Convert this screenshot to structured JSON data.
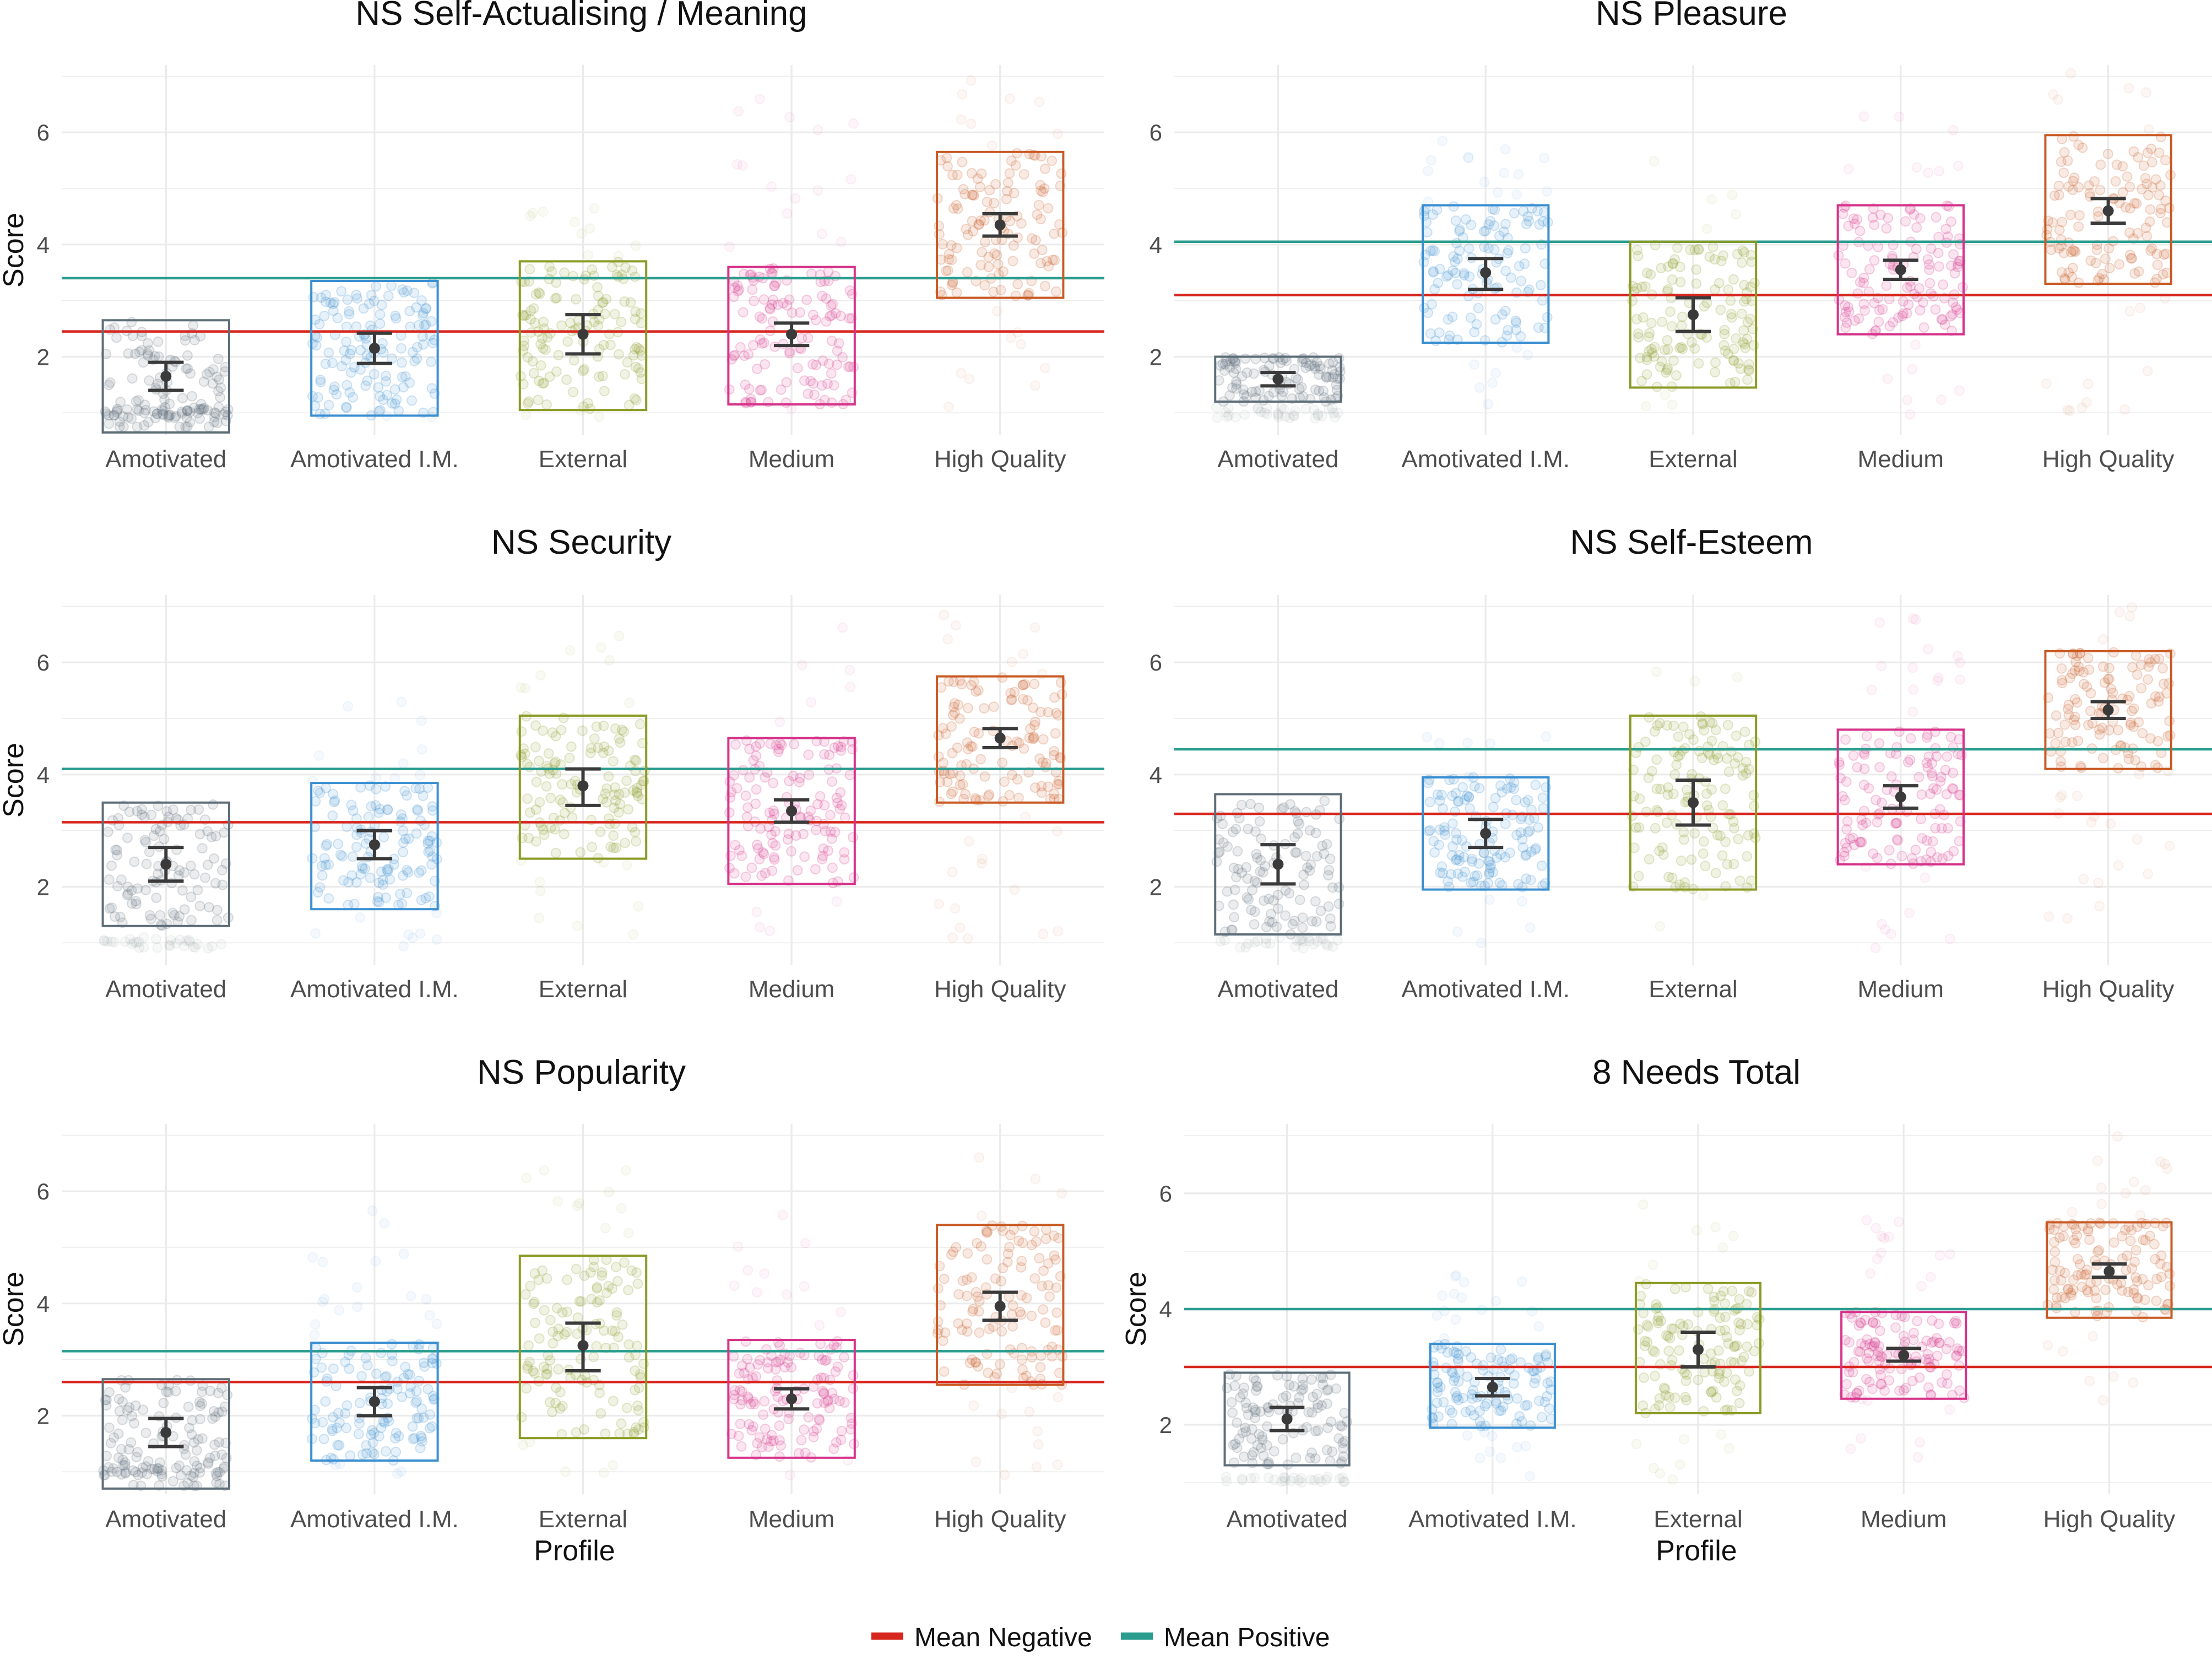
{
  "figure": {
    "x_axis_title": "Profile",
    "y_axis_title": "Score",
    "legend": {
      "position": "bottom",
      "items": [
        {
          "label": "Mean Negative",
          "color": "#d7261e"
        },
        {
          "label": "Mean Positive",
          "color": "#2a9d8f"
        }
      ]
    },
    "profile_colors": {
      "Amotivated": "#5e6e78",
      "Amotivated I.M.": "#3a8fd1",
      "External": "#8a9a24",
      "Medium": "#d6338a",
      "High Quality": "#c95a24"
    }
  },
  "chart_data": [
    {
      "type": "scatter",
      "title": "NS Self-Actualising / Meaning",
      "categories": [
        "Amotivated",
        "Amotivated I.M.",
        "External",
        "Medium",
        "High Quality"
      ],
      "ylim": [
        0.6,
        7.2
      ],
      "yticks": [
        2,
        4,
        6
      ],
      "ylabel": "Score",
      "xlabel": "",
      "mean_negative": 2.45,
      "mean_positive": 3.4,
      "series": [
        {
          "name": "Amotivated",
          "mean": 1.65,
          "ci": [
            1.4,
            1.9
          ],
          "box": [
            0.65,
            2.65
          ],
          "point_density": [
            0.9,
            1.1
          ]
        },
        {
          "name": "Amotivated I.M.",
          "mean": 2.15,
          "ci": [
            1.88,
            2.42
          ],
          "box": [
            0.95,
            3.35
          ],
          "point_density": [
            0.9,
            3.4
          ]
        },
        {
          "name": "External",
          "mean": 2.4,
          "ci": [
            2.05,
            2.75
          ],
          "box": [
            1.05,
            3.7
          ],
          "point_density": [
            0.9,
            4.8
          ]
        },
        {
          "name": "Medium",
          "mean": 2.4,
          "ci": [
            2.2,
            2.6
          ],
          "box": [
            1.15,
            3.6
          ],
          "point_density": [
            0.9,
            6.7
          ]
        },
        {
          "name": "High Quality",
          "mean": 4.35,
          "ci": [
            4.15,
            4.55
          ],
          "box": [
            3.05,
            5.65
          ],
          "point_density": [
            1.0,
            7.0
          ]
        }
      ]
    },
    {
      "type": "scatter",
      "title": "NS Pleasure",
      "categories": [
        "Amotivated",
        "Amotivated I.M.",
        "External",
        "Medium",
        "High Quality"
      ],
      "ylim": [
        0.6,
        7.2
      ],
      "yticks": [
        2,
        4,
        6
      ],
      "ylabel": "",
      "xlabel": "",
      "mean_negative": 3.1,
      "mean_positive": 4.05,
      "series": [
        {
          "name": "Amotivated",
          "mean": 1.6,
          "ci": [
            1.48,
            1.72
          ],
          "box": [
            1.2,
            2.0
          ],
          "point_density": [
            0.9,
            1.1
          ]
        },
        {
          "name": "Amotivated I.M.",
          "mean": 3.5,
          "ci": [
            3.2,
            3.75
          ],
          "box": [
            2.25,
            4.7
          ],
          "point_density": [
            1.0,
            6.0
          ]
        },
        {
          "name": "External",
          "mean": 2.75,
          "ci": [
            2.45,
            3.05
          ],
          "box": [
            1.45,
            4.05
          ],
          "point_density": [
            0.9,
            5.5
          ]
        },
        {
          "name": "Medium",
          "mean": 3.55,
          "ci": [
            3.38,
            3.72
          ],
          "box": [
            2.4,
            4.7
          ],
          "point_density": [
            0.9,
            6.3
          ]
        },
        {
          "name": "High Quality",
          "mean": 4.6,
          "ci": [
            4.38,
            4.82
          ],
          "box": [
            3.3,
            5.95
          ],
          "point_density": [
            0.9,
            7.1
          ]
        }
      ]
    },
    {
      "type": "scatter",
      "title": "NS Security",
      "categories": [
        "Amotivated",
        "Amotivated I.M.",
        "External",
        "Medium",
        "High Quality"
      ],
      "ylim": [
        0.6,
        7.2
      ],
      "yticks": [
        2,
        4,
        6
      ],
      "ylabel": "Score",
      "xlabel": "",
      "mean_negative": 3.15,
      "mean_positive": 4.1,
      "series": [
        {
          "name": "Amotivated",
          "mean": 2.4,
          "ci": [
            2.1,
            2.7
          ],
          "box": [
            1.3,
            3.5
          ],
          "point_density": [
            0.9,
            1.1
          ]
        },
        {
          "name": "Amotivated I.M.",
          "mean": 2.75,
          "ci": [
            2.5,
            3.0
          ],
          "box": [
            1.6,
            3.85
          ],
          "point_density": [
            0.9,
            5.5
          ]
        },
        {
          "name": "External",
          "mean": 3.8,
          "ci": [
            3.45,
            4.1
          ],
          "box": [
            2.5,
            5.05
          ],
          "point_density": [
            1.0,
            6.6
          ]
        },
        {
          "name": "Medium",
          "mean": 3.35,
          "ci": [
            3.15,
            3.55
          ],
          "box": [
            2.05,
            4.65
          ],
          "point_density": [
            0.9,
            7.0
          ]
        },
        {
          "name": "High Quality",
          "mean": 4.65,
          "ci": [
            4.48,
            4.82
          ],
          "box": [
            3.5,
            5.75
          ],
          "point_density": [
            1.0,
            6.9
          ]
        }
      ]
    },
    {
      "type": "scatter",
      "title": "NS Self-Esteem",
      "categories": [
        "Amotivated",
        "Amotivated I.M.",
        "External",
        "Medium",
        "High Quality"
      ],
      "ylim": [
        0.6,
        7.2
      ],
      "yticks": [
        2,
        4,
        6
      ],
      "ylabel": "",
      "xlabel": "",
      "mean_negative": 3.3,
      "mean_positive": 4.45,
      "series": [
        {
          "name": "Amotivated",
          "mean": 2.4,
          "ci": [
            2.05,
            2.75
          ],
          "box": [
            1.15,
            3.65
          ],
          "point_density": [
            0.9,
            1.1
          ]
        },
        {
          "name": "Amotivated I.M.",
          "mean": 2.95,
          "ci": [
            2.7,
            3.2
          ],
          "box": [
            1.95,
            3.95
          ],
          "point_density": [
            0.9,
            4.8
          ]
        },
        {
          "name": "External",
          "mean": 3.5,
          "ci": [
            3.1,
            3.9
          ],
          "box": [
            1.95,
            5.05
          ],
          "point_density": [
            1.0,
            6.0
          ]
        },
        {
          "name": "Medium",
          "mean": 3.6,
          "ci": [
            3.4,
            3.8
          ],
          "box": [
            2.4,
            4.8
          ],
          "point_density": [
            0.9,
            6.8
          ]
        },
        {
          "name": "High Quality",
          "mean": 5.15,
          "ci": [
            5.0,
            5.3
          ],
          "box": [
            4.1,
            6.2
          ],
          "point_density": [
            1.3,
            7.0
          ]
        }
      ]
    },
    {
      "type": "scatter",
      "title": "NS Popularity",
      "categories": [
        "Amotivated",
        "Amotivated I.M.",
        "External",
        "Medium",
        "High Quality"
      ],
      "ylim": [
        0.6,
        7.2
      ],
      "yticks": [
        2,
        4,
        6
      ],
      "ylabel": "Score",
      "xlabel": "Profile",
      "mean_negative": 2.6,
      "mean_positive": 3.15,
      "series": [
        {
          "name": "Amotivated",
          "mean": 1.7,
          "ci": [
            1.45,
            1.95
          ],
          "box": [
            0.7,
            2.65
          ],
          "point_density": [
            0.9,
            1.1
          ]
        },
        {
          "name": "Amotivated I.M.",
          "mean": 2.25,
          "ci": [
            2.0,
            2.5
          ],
          "box": [
            1.2,
            3.3
          ],
          "point_density": [
            0.9,
            5.7
          ]
        },
        {
          "name": "External",
          "mean": 3.25,
          "ci": [
            2.8,
            3.65
          ],
          "box": [
            1.6,
            4.85
          ],
          "point_density": [
            0.9,
            6.5
          ]
        },
        {
          "name": "Medium",
          "mean": 2.3,
          "ci": [
            2.12,
            2.48
          ],
          "box": [
            1.25,
            3.35
          ],
          "point_density": [
            0.9,
            5.9
          ]
        },
        {
          "name": "High Quality",
          "mean": 3.95,
          "ci": [
            3.7,
            4.2
          ],
          "box": [
            2.55,
            5.4
          ],
          "point_density": [
            0.9,
            7.0
          ]
        }
      ]
    },
    {
      "type": "scatter",
      "title": "8 Needs Total",
      "categories": [
        "Amotivated",
        "Amotivated I.M.",
        "External",
        "Medium",
        "High Quality"
      ],
      "ylim": [
        0.8,
        7.2
      ],
      "yticks": [
        2,
        4,
        6
      ],
      "ylabel": "Score",
      "xlabel": "Profile",
      "mean_negative": 3.0,
      "mean_positive": 4.0,
      "series": [
        {
          "name": "Amotivated",
          "mean": 2.1,
          "ci": [
            1.9,
            2.3
          ],
          "box": [
            1.3,
            2.9
          ],
          "point_density": [
            1.0,
            1.1
          ]
        },
        {
          "name": "Amotivated I.M.",
          "mean": 2.65,
          "ci": [
            2.5,
            2.8
          ],
          "box": [
            1.95,
            3.4
          ],
          "point_density": [
            1.1,
            4.7
          ]
        },
        {
          "name": "External",
          "mean": 3.3,
          "ci": [
            3.0,
            3.6
          ],
          "box": [
            2.2,
            4.45
          ],
          "point_density": [
            1.0,
            6.0
          ]
        },
        {
          "name": "Medium",
          "mean": 3.2,
          "ci": [
            3.1,
            3.32
          ],
          "box": [
            2.45,
            3.95
          ],
          "point_density": [
            1.4,
            5.6
          ]
        },
        {
          "name": "High Quality",
          "mean": 4.65,
          "ci": [
            4.55,
            4.78
          ],
          "box": [
            3.85,
            5.5
          ],
          "point_density": [
            2.2,
            7.0
          ]
        }
      ]
    }
  ]
}
